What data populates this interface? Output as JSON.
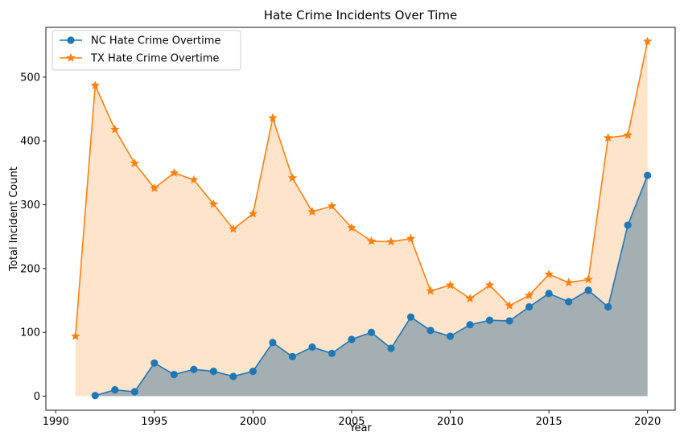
{
  "chart_data": {
    "type": "line",
    "title": "Hate Crime Incidents Over Time",
    "xlabel": "Year",
    "ylabel": "Total Incident Count",
    "xlim": [
      1989.5,
      2021.4
    ],
    "ylim": [
      -22,
      578
    ],
    "xticks": [
      1990,
      1995,
      2000,
      2005,
      2010,
      2015,
      2020
    ],
    "yticks": [
      0,
      100,
      200,
      300,
      400,
      500
    ],
    "grid": false,
    "legend_position": "top-left",
    "series": [
      {
        "name": "NC Hate Crime Overtime",
        "color": "#1f77b4",
        "marker": "circle",
        "fill_color": "#a4afb4",
        "x": [
          1992,
          1993,
          1994,
          1995,
          1996,
          1997,
          1998,
          1999,
          2000,
          2001,
          2002,
          2003,
          2004,
          2005,
          2006,
          2007,
          2008,
          2009,
          2010,
          2011,
          2012,
          2013,
          2014,
          2015,
          2016,
          2017,
          2018,
          2019,
          2020
        ],
        "values": [
          1,
          10,
          7,
          52,
          34,
          42,
          39,
          31,
          39,
          84,
          62,
          77,
          67,
          89,
          100,
          75,
          124,
          103,
          94,
          112,
          119,
          118,
          140,
          161,
          148,
          166,
          140,
          268,
          346
        ]
      },
      {
        "name": "TX Hate Crime Overtime",
        "color": "#ff7f0e",
        "marker": "star",
        "fill_color": "#ffe4cc",
        "x": [
          1991,
          1992,
          1993,
          1994,
          1995,
          1996,
          1997,
          1998,
          1999,
          2000,
          2001,
          2002,
          2003,
          2004,
          2005,
          2006,
          2007,
          2008,
          2009,
          2010,
          2011,
          2012,
          2013,
          2014,
          2015,
          2016,
          2017,
          2018,
          2019,
          2020
        ],
        "values": [
          94,
          487,
          418,
          365,
          326,
          350,
          339,
          301,
          262,
          286,
          436,
          342,
          289,
          298,
          264,
          243,
          242,
          247,
          165,
          174,
          153,
          174,
          142,
          158,
          191,
          178,
          183,
          405,
          409,
          556
        ]
      }
    ]
  }
}
